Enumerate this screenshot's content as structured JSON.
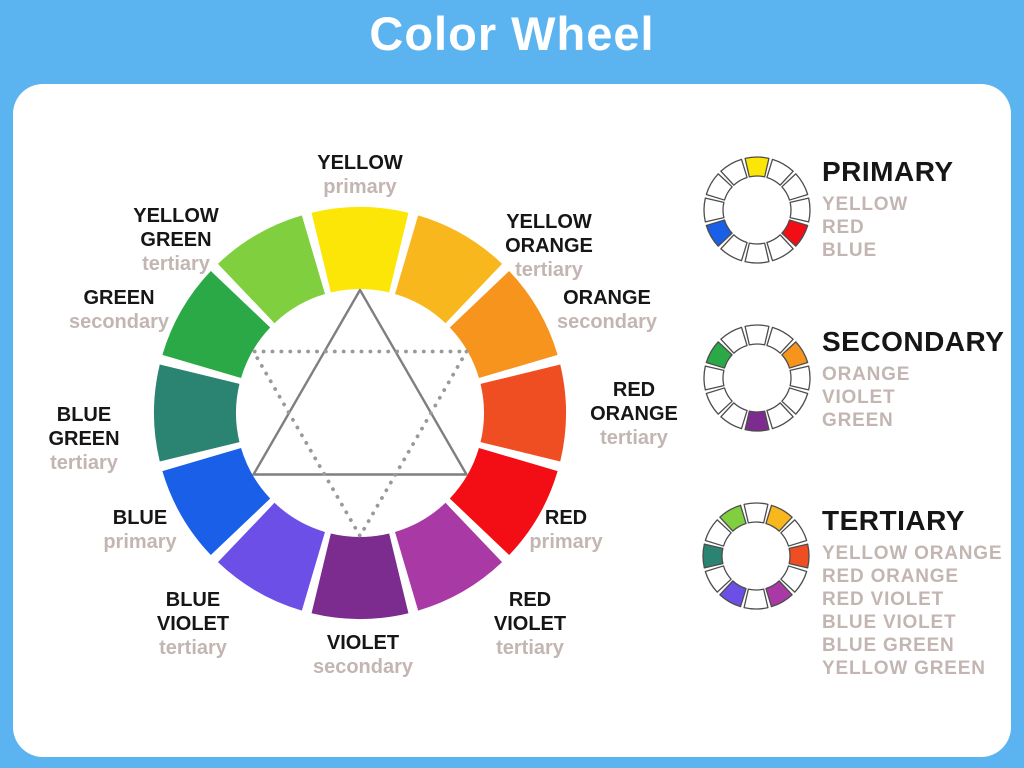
{
  "title": "Color Wheel",
  "colors": {
    "background": "#5BB4F0",
    "panel": "#FFFFFF",
    "label_black": "#161616",
    "label_gray": "#C3B6B2",
    "triangle_solid": "#7F7F7F",
    "triangle_dotted": "#999999",
    "mini_wheel_outline": "#4D4D4D",
    "mini_wheel_blank": "#FFFFFF"
  },
  "wheel": {
    "segments": [
      {
        "name": "YELLOW",
        "type": "primary",
        "color": "#FBE608"
      },
      {
        "name": "YELLOW ORANGE",
        "type": "tertiary",
        "color": "#F8B71C"
      },
      {
        "name": "ORANGE",
        "type": "secondary",
        "color": "#F7941E"
      },
      {
        "name": "RED ORANGE",
        "type": "tertiary",
        "color": "#EF4E23"
      },
      {
        "name": "RED",
        "type": "primary",
        "color": "#F30D14"
      },
      {
        "name": "RED VIOLET",
        "type": "tertiary",
        "color": "#A93AA5"
      },
      {
        "name": "VIOLET",
        "type": "secondary",
        "color": "#7C2B8F"
      },
      {
        "name": "BLUE VIOLET",
        "type": "tertiary",
        "color": "#6B4FE6"
      },
      {
        "name": "BLUE",
        "type": "primary",
        "color": "#1A5FE8"
      },
      {
        "name": "BLUE GREEN",
        "type": "tertiary",
        "color": "#2A8471"
      },
      {
        "name": "GREEN",
        "type": "secondary",
        "color": "#2CA947"
      },
      {
        "name": "YELLOW GREEN",
        "type": "tertiary",
        "color": "#80CF3F"
      }
    ]
  },
  "legend": [
    {
      "title": "PRIMARY",
      "items": [
        "YELLOW",
        "RED",
        "BLUE"
      ],
      "highlights": [
        0,
        4,
        8
      ]
    },
    {
      "title": "SECONDARY",
      "items": [
        "ORANGE",
        "VIOLET",
        "GREEN"
      ],
      "highlights": [
        2,
        6,
        10
      ]
    },
    {
      "title": "TERTIARY",
      "items": [
        "YELLOW ORANGE",
        "RED ORANGE",
        "RED VIOLET",
        "BLUE VIOLET",
        "BLUE GREEN",
        "YELLOW GREEN"
      ],
      "highlights": [
        1,
        3,
        5,
        7,
        9,
        11
      ]
    }
  ]
}
